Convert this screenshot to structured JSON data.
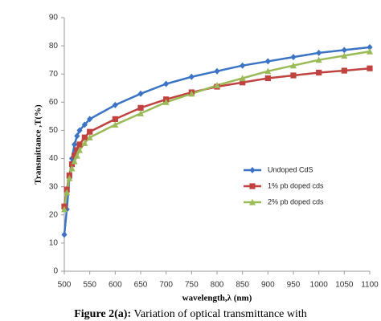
{
  "chart_data": {
    "type": "line",
    "xlabel": "wavelength,λ (nm)",
    "ylabel": "Transmittance ,T(%)",
    "caption_label": "Figure 2(a):",
    "caption_text": "Variation of optical transmittance with",
    "x": [
      500,
      505,
      510,
      515,
      520,
      525,
      530,
      540,
      550,
      600,
      650,
      700,
      750,
      800,
      850,
      900,
      950,
      1000,
      1050,
      1100
    ],
    "series": [
      {
        "name": "Undoped CdS",
        "color": "#3b74c4",
        "marker": "diamond",
        "values": [
          13,
          22,
          33,
          40,
          45,
          48,
          50,
          52,
          54,
          59,
          63,
          66.5,
          69,
          71,
          73,
          74.5,
          76,
          77.5,
          78.5,
          79.5
        ]
      },
      {
        "name": "1% pb doped cds",
        "color": "#c0433f",
        "marker": "square",
        "values": [
          23,
          29,
          34,
          38,
          41,
          43,
          45,
          47.5,
          49.5,
          54,
          58,
          61,
          63.5,
          65.5,
          67,
          68.5,
          69.5,
          70.5,
          71.2,
          72
        ]
      },
      {
        "name": "2% pb doped cds",
        "color": "#9bbb59",
        "marker": "triangle",
        "values": [
          22,
          28,
          33,
          36.5,
          39,
          41,
          43,
          45.5,
          47.5,
          52,
          56,
          60,
          63,
          66,
          68.5,
          71,
          73,
          75,
          76.5,
          78
        ]
      }
    ],
    "xlim": [
      500,
      1100
    ],
    "xticks": [
      500,
      550,
      600,
      650,
      700,
      750,
      800,
      850,
      900,
      950,
      1000,
      1050,
      1100
    ],
    "ylim": [
      0,
      90
    ],
    "yticks": [
      0,
      10,
      20,
      30,
      40,
      50,
      60,
      70,
      80,
      90
    ],
    "grid": false,
    "legend": "right"
  }
}
